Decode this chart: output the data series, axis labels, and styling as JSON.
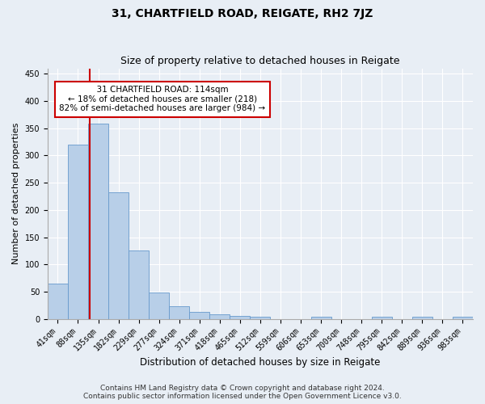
{
  "title": "31, CHARTFIELD ROAD, REIGATE, RH2 7JZ",
  "subtitle": "Size of property relative to detached houses in Reigate",
  "xlabel": "Distribution of detached houses by size in Reigate",
  "ylabel": "Number of detached properties",
  "bar_labels": [
    "41sqm",
    "88sqm",
    "135sqm",
    "182sqm",
    "229sqm",
    "277sqm",
    "324sqm",
    "371sqm",
    "418sqm",
    "465sqm",
    "512sqm",
    "559sqm",
    "606sqm",
    "653sqm",
    "700sqm",
    "748sqm",
    "795sqm",
    "842sqm",
    "889sqm",
    "936sqm",
    "983sqm"
  ],
  "bar_heights": [
    65,
    320,
    358,
    233,
    125,
    48,
    23,
    13,
    9,
    6,
    4,
    0,
    0,
    4,
    0,
    0,
    4,
    0,
    4,
    0,
    4
  ],
  "bar_color": "#b8cfe8",
  "bar_edge_color": "#6699cc",
  "property_line_x": 1.57,
  "annotation_text": "  31 CHARTFIELD ROAD: 114sqm  \n← 18% of detached houses are smaller (218)\n82% of semi-detached houses are larger (984) →",
  "annotation_box_color": "#ffffff",
  "annotation_box_edge": "#cc0000",
  "vline_color": "#cc0000",
  "ylim": [
    0,
    460
  ],
  "yticks": [
    0,
    50,
    100,
    150,
    200,
    250,
    300,
    350,
    400,
    450
  ],
  "footer_line1": "Contains HM Land Registry data © Crown copyright and database right 2024.",
  "footer_line2": "Contains public sector information licensed under the Open Government Licence v3.0.",
  "bg_color": "#e8eef5",
  "plot_bg_color": "#e8eef5",
  "grid_color": "#ffffff",
  "title_fontsize": 10,
  "subtitle_fontsize": 9,
  "xlabel_fontsize": 8.5,
  "ylabel_fontsize": 8,
  "tick_fontsize": 7,
  "footer_fontsize": 6.5,
  "annot_fontsize": 7.5
}
